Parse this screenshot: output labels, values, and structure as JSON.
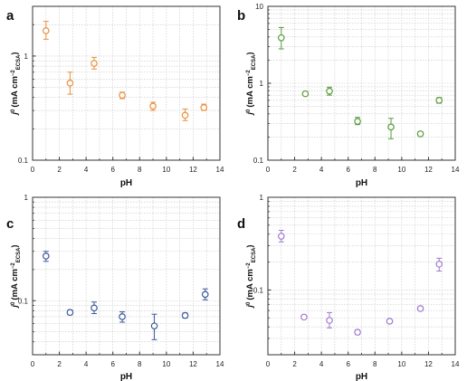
{
  "chart_data": [
    {
      "panel": "a",
      "type": "scatter",
      "xlabel": "pH",
      "ylabel": "j⁰ (mA cm⁻²ECSA)",
      "ylabel_main": "j",
      "ylabel_sup": "0",
      "ylabel_unit": "(mA cm",
      "ylabel_exp": "−2",
      "ylabel_sub": "ECSA",
      "ylabel_close": ")",
      "xlim": [
        0,
        14
      ],
      "ylim": [
        0.1,
        3
      ],
      "yscale": "log",
      "xticks": [
        "0",
        "2",
        "4",
        "6",
        "8",
        "10",
        "12",
        "14"
      ],
      "yticks": [
        {
          "value": 0.1,
          "label": "0.1"
        },
        {
          "value": 1,
          "label": "1"
        }
      ],
      "grid": true,
      "color": "#e8913c",
      "points": [
        {
          "x": 1.0,
          "y": 1.75,
          "lo": 1.45,
          "hi": 2.15
        },
        {
          "x": 2.8,
          "y": 0.55,
          "lo": 0.43,
          "hi": 0.7
        },
        {
          "x": 4.6,
          "y": 0.85,
          "lo": 0.75,
          "hi": 0.97
        },
        {
          "x": 6.7,
          "y": 0.42,
          "lo": 0.39,
          "hi": 0.45
        },
        {
          "x": 9.0,
          "y": 0.33,
          "lo": 0.3,
          "hi": 0.36
        },
        {
          "x": 11.4,
          "y": 0.27,
          "lo": 0.24,
          "hi": 0.31
        },
        {
          "x": 12.8,
          "y": 0.32,
          "lo": 0.3,
          "hi": 0.345
        }
      ]
    },
    {
      "panel": "b",
      "type": "scatter",
      "xlabel": "pH",
      "ylabel": "j⁰ (mA cm⁻²ECSA)",
      "ylabel_main": "j",
      "ylabel_sup": "0",
      "ylabel_unit": "(mA cm",
      "ylabel_exp": "−2",
      "ylabel_sub": "ECSA",
      "ylabel_close": ")",
      "xlim": [
        0,
        14
      ],
      "ylim": [
        0.1,
        10
      ],
      "yscale": "log",
      "xticks": [
        "0",
        "2",
        "4",
        "6",
        "8",
        "10",
        "12",
        "14"
      ],
      "yticks": [
        {
          "value": 0.1,
          "label": "0.1"
        },
        {
          "value": 1,
          "label": "1"
        },
        {
          "value": 10,
          "label": "10"
        }
      ],
      "grid": true,
      "color": "#5a9a3c",
      "points": [
        {
          "x": 1.0,
          "y": 3.9,
          "lo": 2.8,
          "hi": 5.3
        },
        {
          "x": 2.8,
          "y": 0.73,
          "lo": 0.7,
          "hi": 0.76
        },
        {
          "x": 4.6,
          "y": 0.79,
          "lo": 0.7,
          "hi": 0.89
        },
        {
          "x": 6.7,
          "y": 0.32,
          "lo": 0.29,
          "hi": 0.36
        },
        {
          "x": 9.2,
          "y": 0.27,
          "lo": 0.19,
          "hi": 0.35
        },
        {
          "x": 11.4,
          "y": 0.22,
          "lo": 0.21,
          "hi": 0.235
        },
        {
          "x": 12.8,
          "y": 0.6,
          "lo": 0.55,
          "hi": 0.65
        }
      ]
    },
    {
      "panel": "c",
      "type": "scatter",
      "xlabel": "pH",
      "ylabel": "j⁰ (mA cm⁻²ECSA)",
      "ylabel_main": "j",
      "ylabel_sup": "0",
      "ylabel_unit": "(mA cm",
      "ylabel_exp": "−2",
      "ylabel_sub": "ECSA",
      "ylabel_close": ")",
      "xlim": [
        0,
        14
      ],
      "ylim": [
        0.03,
        1
      ],
      "yscale": "log",
      "xticks": [
        "0",
        "2",
        "4",
        "6",
        "8",
        "10",
        "12",
        "14"
      ],
      "yticks": [
        {
          "value": 0.1,
          "label": "0.1"
        },
        {
          "value": 1,
          "label": "1"
        }
      ],
      "grid": true,
      "color": "#3c5a9a",
      "points": [
        {
          "x": 1.0,
          "y": 0.27,
          "lo": 0.24,
          "hi": 0.3
        },
        {
          "x": 2.8,
          "y": 0.077,
          "lo": 0.073,
          "hi": 0.081
        },
        {
          "x": 4.6,
          "y": 0.085,
          "lo": 0.075,
          "hi": 0.097
        },
        {
          "x": 6.7,
          "y": 0.07,
          "lo": 0.062,
          "hi": 0.078
        },
        {
          "x": 9.1,
          "y": 0.057,
          "lo": 0.042,
          "hi": 0.074
        },
        {
          "x": 11.4,
          "y": 0.072,
          "lo": 0.068,
          "hi": 0.076
        },
        {
          "x": 12.9,
          "y": 0.115,
          "lo": 0.102,
          "hi": 0.13
        }
      ]
    },
    {
      "panel": "d",
      "type": "scatter",
      "xlabel": "pH",
      "ylabel": "j⁰ (mA cm⁻²ECSA)",
      "ylabel_main": "j",
      "ylabel_sup": "0",
      "ylabel_unit": "(mA cm",
      "ylabel_exp": "−2",
      "ylabel_sub": "ECSA",
      "ylabel_close": ")",
      "xlim": [
        0,
        14
      ],
      "ylim": [
        0.02,
        1
      ],
      "yscale": "log",
      "xticks": [
        "0",
        "2",
        "4",
        "6",
        "8",
        "10",
        "12",
        "14"
      ],
      "yticks": [
        {
          "value": 0.1,
          "label": "0.1"
        },
        {
          "value": 1,
          "label": "1"
        }
      ],
      "grid": true,
      "color": "#a07ad0",
      "points": [
        {
          "x": 1.0,
          "y": 0.38,
          "lo": 0.33,
          "hi": 0.44
        },
        {
          "x": 2.7,
          "y": 0.051,
          "lo": 0.049,
          "hi": 0.053
        },
        {
          "x": 4.6,
          "y": 0.047,
          "lo": 0.039,
          "hi": 0.057
        },
        {
          "x": 6.7,
          "y": 0.035,
          "lo": 0.033,
          "hi": 0.037
        },
        {
          "x": 9.1,
          "y": 0.046,
          "lo": 0.044,
          "hi": 0.048
        },
        {
          "x": 11.4,
          "y": 0.063,
          "lo": 0.06,
          "hi": 0.066
        },
        {
          "x": 12.8,
          "y": 0.19,
          "lo": 0.16,
          "hi": 0.22
        }
      ]
    }
  ]
}
